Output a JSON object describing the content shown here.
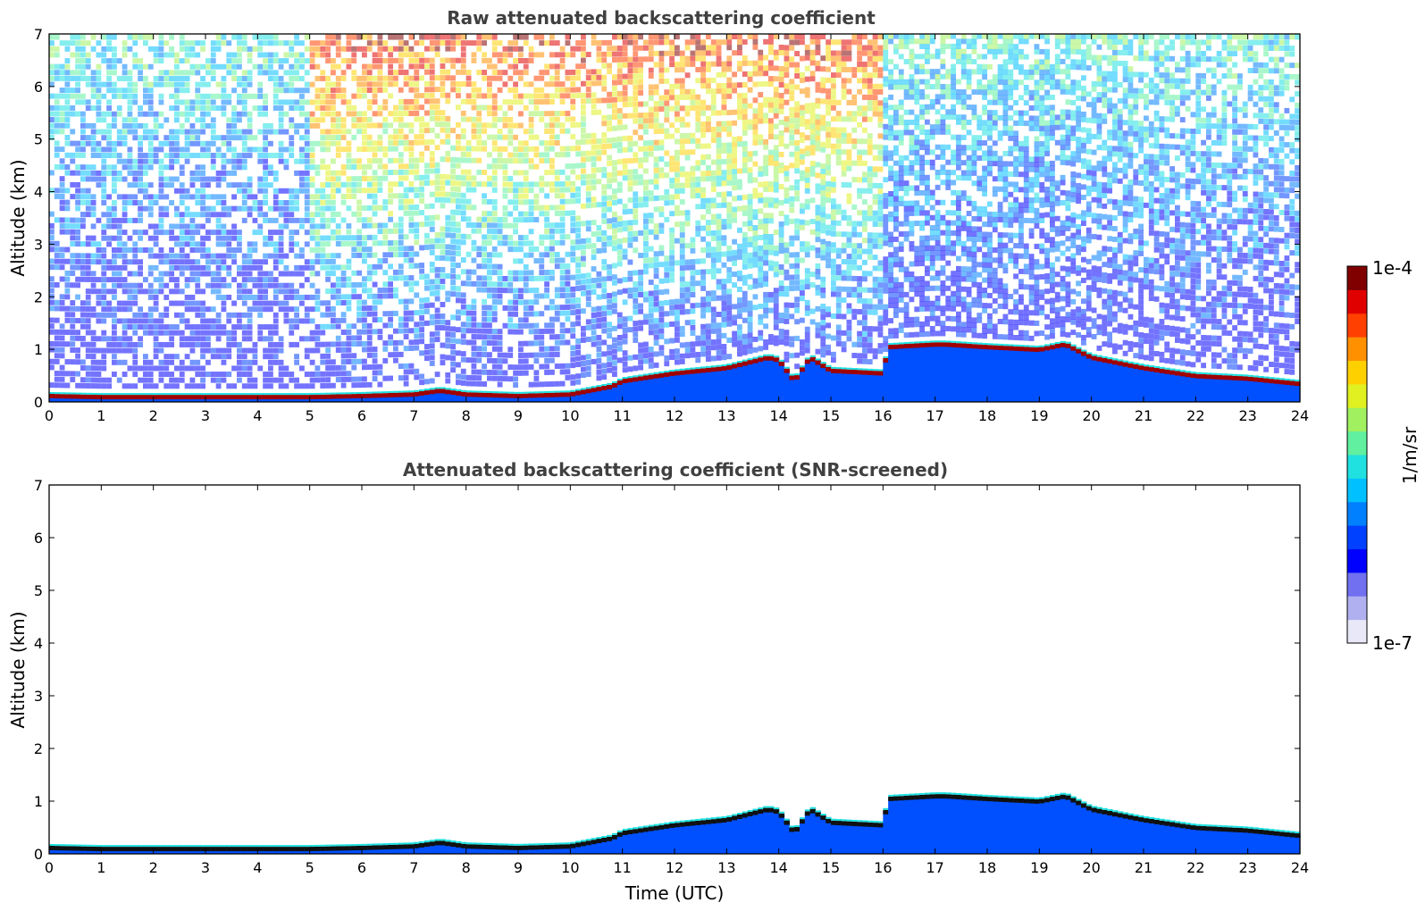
{
  "chart_data": [
    {
      "type": "heatmap",
      "title": "Raw attenuated backscattering coefficient",
      "xlabel": "",
      "ylabel": "Altitude (km)",
      "xlim": [
        0,
        24
      ],
      "ylim": [
        0,
        7
      ],
      "x_ticks": [
        "0",
        "1",
        "2",
        "3",
        "4",
        "5",
        "6",
        "7",
        "8",
        "9",
        "10",
        "11",
        "12",
        "13",
        "14",
        "15",
        "16",
        "17",
        "18",
        "19",
        "20",
        "21",
        "22",
        "23",
        "24"
      ],
      "y_ticks": [
        "0",
        "1",
        "2",
        "3",
        "4",
        "5",
        "6",
        "7"
      ],
      "grid": false,
      "layer_top_km": [
        [
          0,
          0.12
        ],
        [
          1,
          0.1
        ],
        [
          2,
          0.1
        ],
        [
          3,
          0.1
        ],
        [
          4,
          0.1
        ],
        [
          5,
          0.1
        ],
        [
          6,
          0.12
        ],
        [
          7,
          0.15
        ],
        [
          7.5,
          0.22
        ],
        [
          8,
          0.15
        ],
        [
          9,
          0.12
        ],
        [
          10,
          0.15
        ],
        [
          10.8,
          0.3
        ],
        [
          11,
          0.4
        ],
        [
          12,
          0.55
        ],
        [
          13,
          0.65
        ],
        [
          13.8,
          0.85
        ],
        [
          14,
          0.8
        ],
        [
          14.3,
          0.4
        ],
        [
          14.6,
          0.85
        ],
        [
          15,
          0.6
        ],
        [
          16,
          0.55
        ],
        [
          16.1,
          1.05
        ],
        [
          17,
          1.1
        ],
        [
          17.2,
          1.1
        ],
        [
          18,
          1.05
        ],
        [
          19,
          1.0
        ],
        [
          19.5,
          1.1
        ],
        [
          20,
          0.85
        ],
        [
          21,
          0.65
        ],
        [
          22,
          0.5
        ],
        [
          23,
          0.45
        ],
        [
          24,
          0.35
        ]
      ],
      "upper_noise": "high signal 4-7 km from 5 to 16 UTC, weaker after 16 UTC"
    },
    {
      "type": "heatmap",
      "title": "Attenuated backscattering coefficient (SNR-screened)",
      "xlabel": "Time (UTC)",
      "ylabel": "Altitude (km)",
      "xlim": [
        0,
        24
      ],
      "ylim": [
        0,
        7
      ],
      "x_ticks": [
        "0",
        "1",
        "2",
        "3",
        "4",
        "5",
        "6",
        "7",
        "8",
        "9",
        "10",
        "11",
        "12",
        "13",
        "14",
        "15",
        "16",
        "17",
        "18",
        "19",
        "20",
        "21",
        "22",
        "23",
        "24"
      ],
      "y_ticks": [
        "0",
        "1",
        "2",
        "3",
        "4",
        "5",
        "6",
        "7"
      ],
      "grid": false,
      "upper_noise": "screened out above boundary layer"
    }
  ],
  "colorbar": {
    "label": "1/m/sr",
    "max_label": "1e-4",
    "min_label": "1e-7",
    "scale": "log",
    "colors": [
      "#e8e8f8",
      "#b0b0f0",
      "#7070f0",
      "#0000ff",
      "#0040ff",
      "#0080ff",
      "#00c0ff",
      "#20e0e0",
      "#60f0a0",
      "#a0f060",
      "#e0f020",
      "#ffd000",
      "#ff9000",
      "#ff4000",
      "#e00000",
      "#800000"
    ]
  }
}
